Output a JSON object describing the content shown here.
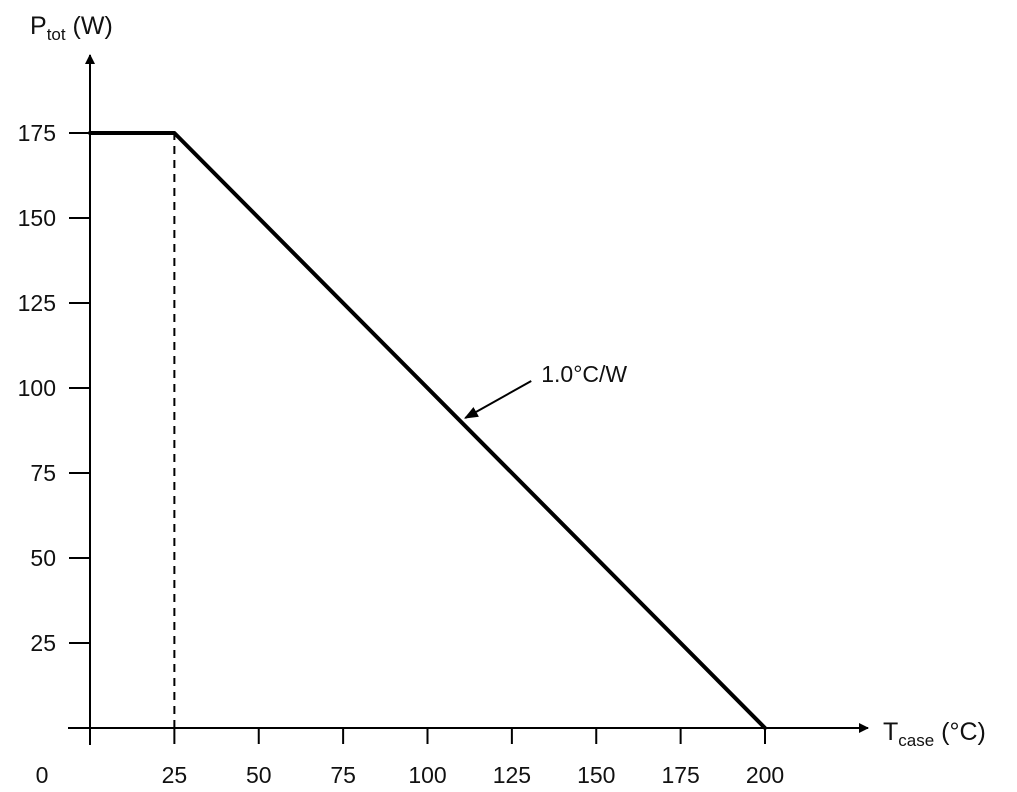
{
  "chart_data": {
    "type": "line",
    "x_label_main": "T",
    "x_label_sub": "case",
    "x_label_unit": " (°C)",
    "y_label_main": "P",
    "y_label_sub": "tot",
    "y_label_unit": " (W)",
    "x_ticks": [
      0,
      25,
      50,
      75,
      100,
      125,
      150,
      175,
      200
    ],
    "y_ticks": [
      25,
      50,
      75,
      100,
      125,
      150,
      175
    ],
    "xlim": [
      0,
      200
    ],
    "ylim": [
      0,
      175
    ],
    "grid": false,
    "series": [
      {
        "x": [
          0,
          25,
          200
        ],
        "y": [
          175,
          175,
          0
        ]
      }
    ],
    "reference_lines": [
      {
        "style": "dashed",
        "x": 25,
        "y_from": 0,
        "y_to": 175
      }
    ],
    "annotations": [
      {
        "text": "1.0°C/W",
        "points_to": {
          "x": 110,
          "y": 90
        }
      }
    ],
    "line_color": "#000000"
  }
}
